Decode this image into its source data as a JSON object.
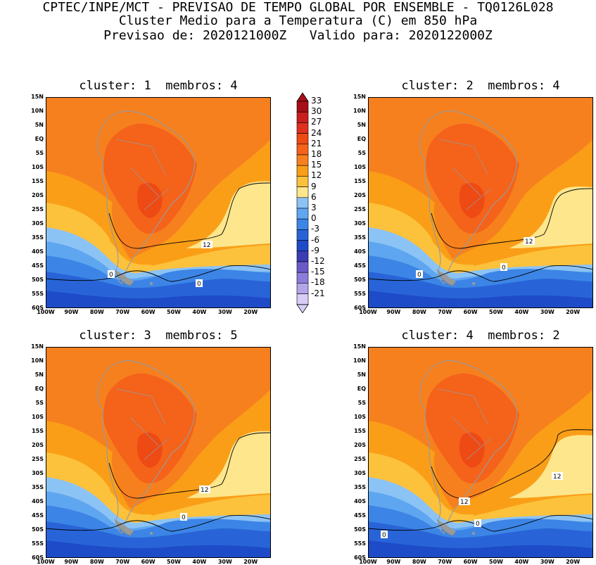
{
  "header": {
    "line1": "CPTEC/INPE/MCT - PREVISAO DE TEMPO GLOBAL POR ENSEMBLE - TQ0126L028",
    "line2": "Cluster Medio para a Temperatura (C) em 850 hPa",
    "line3": "Previsao de: 2020121000Z   Valido para: 2020122000Z"
  },
  "panels": [
    {
      "title": "cluster: 1  membros: 4",
      "contour_labels": [
        "12",
        "0",
        "0"
      ]
    },
    {
      "title": "cluster: 2  membros: 4",
      "contour_labels": [
        "12",
        "0",
        "0"
      ]
    },
    {
      "title": "cluster: 3  membros: 5",
      "contour_labels": [
        "12",
        "0"
      ]
    },
    {
      "title": "cluster: 4  membros: 2",
      "contour_labels": [
        "12",
        "12",
        "0",
        "0"
      ]
    }
  ],
  "lat_labels": [
    "15N",
    "10N",
    "5N",
    "EQ",
    "5S",
    "10S",
    "15S",
    "20S",
    "25S",
    "30S",
    "35S",
    "40S",
    "45S",
    "50S",
    "55S",
    "60S"
  ],
  "lon_labels": [
    "100W",
    "90W",
    "80W",
    "70W",
    "60W",
    "50W",
    "40W",
    "30W",
    "20W"
  ],
  "colorbar": {
    "labels": [
      "33",
      "30",
      "27",
      "24",
      "21",
      "18",
      "15",
      "12",
      "9",
      "6",
      "3",
      "0",
      "-3",
      "-6",
      "-9",
      "-12",
      "-15",
      "-18",
      "-21"
    ],
    "colors": [
      "#a50f15",
      "#c81e1e",
      "#e0301e",
      "#ee4a14",
      "#f5621a",
      "#f7801e",
      "#fa9e18",
      "#fdc23c",
      "#fde68c",
      "#8cc3f5",
      "#5fa6f0",
      "#3c85e6",
      "#2864d7",
      "#1e4bc8",
      "#3c3cb4",
      "#6a5ac8",
      "#8c7ddc",
      "#b4a5eb",
      "#d7cdf5"
    ]
  }
}
